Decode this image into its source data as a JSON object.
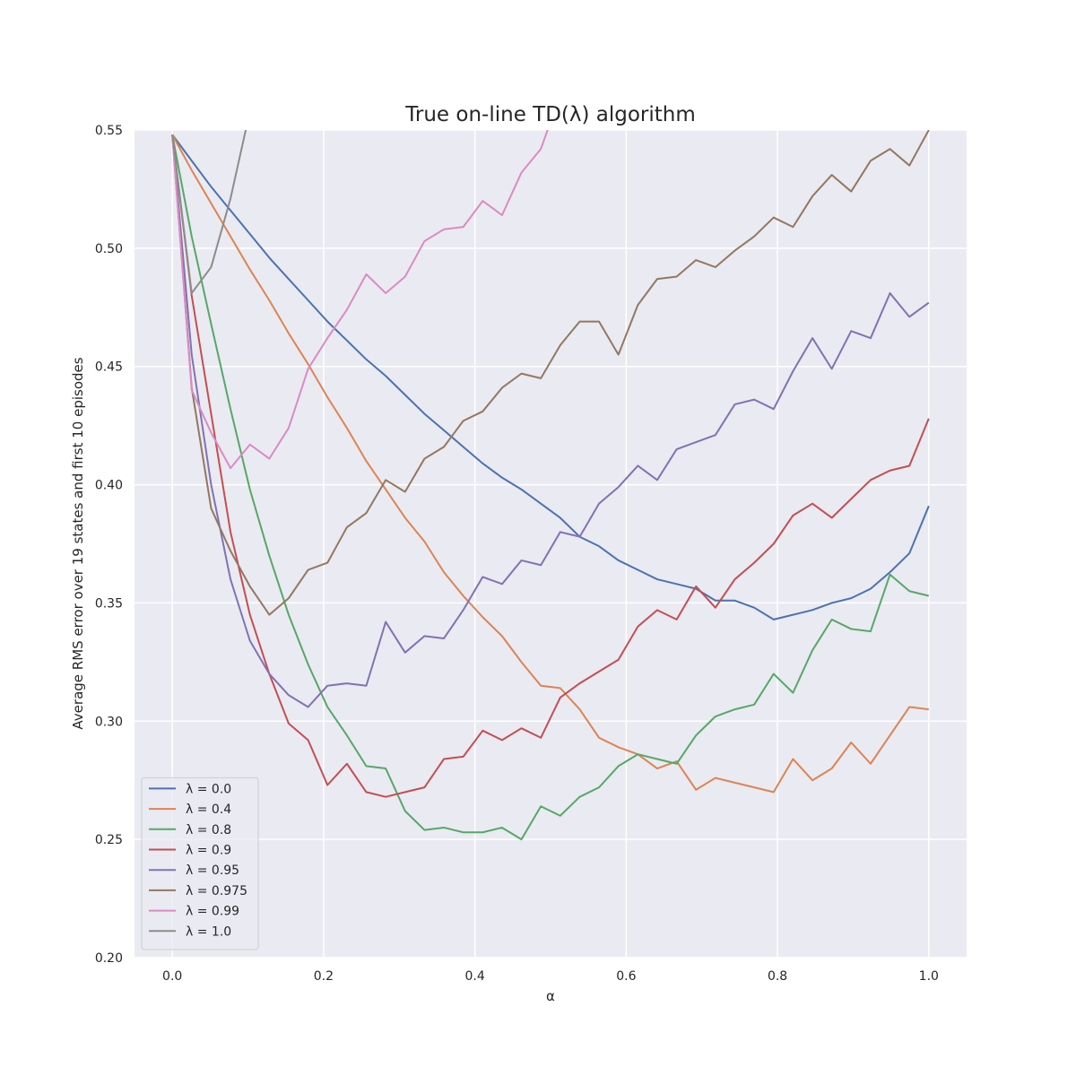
{
  "chart_data": {
    "type": "line",
    "title": "True on-line TD(λ) algorithm",
    "xlabel": "α",
    "ylabel": "Average RMS error over 19 states and first 10 episodes",
    "x": [
      0,
      0.0256,
      0.0513,
      0.0769,
      0.1026,
      0.1282,
      0.1538,
      0.1795,
      0.2051,
      0.2308,
      0.2564,
      0.2821,
      0.3077,
      0.3333,
      0.359,
      0.3846,
      0.4103,
      0.4359,
      0.4615,
      0.4872,
      0.5128,
      0.5385,
      0.5641,
      0.5897,
      0.6154,
      0.641,
      0.6667,
      0.6923,
      0.7179,
      0.7436,
      0.7692,
      0.7949,
      0.8205,
      0.8462,
      0.8718,
      0.8974,
      0.9231,
      0.9487,
      0.9744,
      1
    ],
    "series": [
      {
        "name": "λ = 0.0",
        "color": "#4c72b0",
        "values": [
          0.548,
          0.537,
          0.526,
          0.516,
          0.506,
          0.496,
          0.487,
          0.478,
          0.469,
          0.461,
          0.453,
          0.446,
          0.438,
          0.43,
          0.423,
          0.416,
          0.409,
          0.403,
          0.398,
          0.392,
          0.386,
          0.378,
          0.374,
          0.368,
          0.364,
          0.36,
          0.358,
          0.356,
          0.351,
          0.351,
          0.348,
          0.343,
          0.345,
          0.347,
          0.35,
          0.352,
          0.356,
          0.363,
          0.371,
          0.391
        ]
      },
      {
        "name": "λ = 0.4",
        "color": "#dd8452",
        "values": [
          0.548,
          0.533,
          0.519,
          0.505,
          0.491,
          0.478,
          0.464,
          0.451,
          0.437,
          0.424,
          0.41,
          0.398,
          0.386,
          0.376,
          0.363,
          0.353,
          0.344,
          0.336,
          0.325,
          0.315,
          0.314,
          0.305,
          0.293,
          0.289,
          0.286,
          0.28,
          0.283,
          0.271,
          0.276,
          0.274,
          0.272,
          0.27,
          0.284,
          0.275,
          0.28,
          0.291,
          0.282,
          0.294,
          0.306,
          0.305
        ]
      },
      {
        "name": "λ = 0.8",
        "color": "#55a868",
        "values": [
          0.548,
          0.505,
          0.468,
          0.432,
          0.398,
          0.37,
          0.345,
          0.324,
          0.306,
          0.294,
          0.281,
          0.28,
          0.262,
          0.254,
          0.255,
          0.253,
          0.253,
          0.255,
          0.25,
          0.264,
          0.26,
          0.268,
          0.272,
          0.281,
          0.286,
          0.284,
          0.282,
          0.294,
          0.302,
          0.305,
          0.307,
          0.32,
          0.312,
          0.33,
          0.343,
          0.339,
          0.338,
          0.362,
          0.355,
          0.353
        ]
      },
      {
        "name": "λ = 0.9",
        "color": "#c44e52",
        "values": [
          0.548,
          0.48,
          0.43,
          0.38,
          0.345,
          0.32,
          0.299,
          0.292,
          0.273,
          0.282,
          0.27,
          0.268,
          0.27,
          0.272,
          0.284,
          0.285,
          0.296,
          0.292,
          0.297,
          0.293,
          0.31,
          0.316,
          0.321,
          0.326,
          0.34,
          0.347,
          0.343,
          0.357,
          0.348,
          0.36,
          0.367,
          0.375,
          0.387,
          0.392,
          0.386,
          0.394,
          0.402,
          0.406,
          0.408,
          0.428
        ]
      },
      {
        "name": "λ = 0.95",
        "color": "#8172b3",
        "values": [
          0.548,
          0.455,
          0.4,
          0.36,
          0.334,
          0.32,
          0.311,
          0.306,
          0.315,
          0.316,
          0.315,
          0.342,
          0.329,
          0.336,
          0.335,
          0.347,
          0.361,
          0.358,
          0.368,
          0.366,
          0.38,
          0.378,
          0.392,
          0.399,
          0.408,
          0.402,
          0.415,
          0.418,
          0.421,
          0.434,
          0.436,
          0.432,
          0.448,
          0.462,
          0.449,
          0.465,
          0.462,
          0.481,
          0.471,
          0.477
        ]
      },
      {
        "name": "λ = 0.975",
        "color": "#937860",
        "values": [
          0.548,
          0.441,
          0.39,
          0.372,
          0.357,
          0.345,
          0.352,
          0.364,
          0.367,
          0.382,
          0.388,
          0.402,
          0.397,
          0.411,
          0.416,
          0.427,
          0.431,
          0.441,
          0.447,
          0.445,
          0.459,
          0.469,
          0.469,
          0.455,
          0.476,
          0.487,
          0.488,
          0.495,
          0.492,
          0.499,
          0.505,
          0.513,
          0.509,
          0.522,
          0.531,
          0.524,
          0.537,
          0.542,
          0.535,
          0.55
        ]
      },
      {
        "name": "λ = 0.99",
        "color": "#da8bc3",
        "values": [
          0.548,
          0.44,
          0.422,
          0.407,
          0.417,
          0.411,
          0.424,
          0.449,
          0.462,
          0.474,
          0.489,
          0.481,
          0.488,
          0.503,
          0.508,
          0.509,
          0.52,
          0.514,
          0.532,
          0.542,
          0.565,
          null,
          null,
          null,
          null,
          null,
          null,
          null,
          null,
          null,
          null,
          null,
          null,
          null,
          null,
          null,
          null,
          null,
          null,
          null
        ]
      },
      {
        "name": "λ = 1.0",
        "color": "#8c8c8c",
        "values": [
          0.548,
          0.481,
          0.492,
          0.521,
          0.558,
          null,
          null,
          null,
          null,
          null,
          null,
          null,
          null,
          null,
          null,
          null,
          null,
          null,
          null,
          null,
          null,
          null,
          null,
          null,
          null,
          null,
          null,
          null,
          null,
          null,
          null,
          null,
          null,
          null,
          null,
          null,
          null,
          null,
          null,
          null
        ]
      }
    ],
    "xlim": [
      -0.05,
      1.05
    ],
    "ylim": [
      0.2,
      0.55
    ],
    "xticks": [
      {
        "value": 0,
        "label": "0.0"
      },
      {
        "value": 0.2,
        "label": "0.2"
      },
      {
        "value": 0.4,
        "label": "0.4"
      },
      {
        "value": 0.6,
        "label": "0.6"
      },
      {
        "value": 0.8,
        "label": "0.8"
      },
      {
        "value": 1,
        "label": "1.0"
      }
    ],
    "yticks": [
      {
        "value": 0.2,
        "label": "0.20"
      },
      {
        "value": 0.25,
        "label": "0.25"
      },
      {
        "value": 0.3,
        "label": "0.30"
      },
      {
        "value": 0.35,
        "label": "0.35"
      },
      {
        "value": 0.4,
        "label": "0.40"
      },
      {
        "value": 0.45,
        "label": "0.45"
      },
      {
        "value": 0.5,
        "label": "0.50"
      },
      {
        "value": 0.55,
        "label": "0.55"
      }
    ],
    "grid": true,
    "legend": "lower left"
  }
}
